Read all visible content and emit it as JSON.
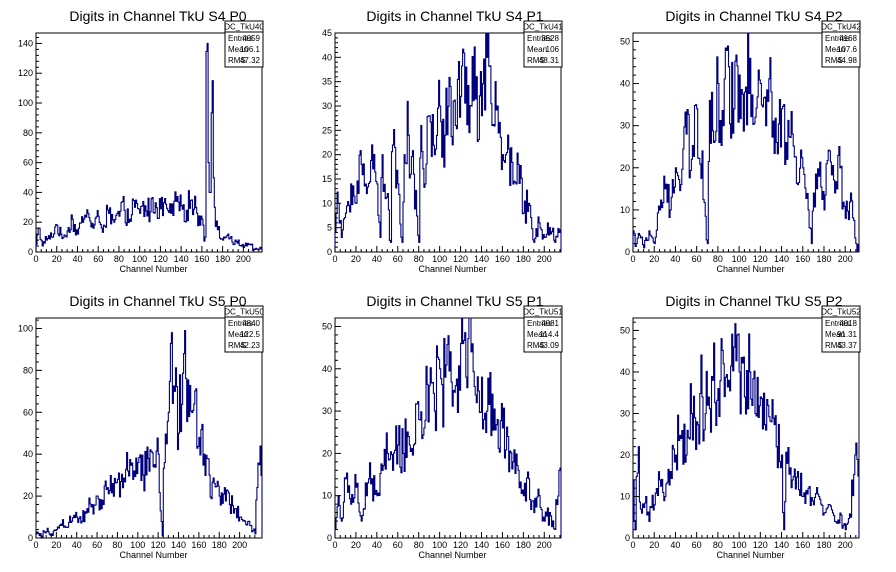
{
  "chart_data": [
    {
      "type": "histogram",
      "title": "Digits in Channel TkU S4 P0",
      "xlabel": "Channel Number",
      "ylabel": "",
      "xlim": [
        0,
        218
      ],
      "ylim": [
        0,
        147
      ],
      "xticks": [
        0,
        20,
        40,
        60,
        80,
        100,
        120,
        140,
        160,
        180,
        200
      ],
      "yticks": [
        0,
        20,
        40,
        60,
        80,
        100,
        120,
        140
      ],
      "color": "#00007f",
      "stats": {
        "name": "DC_TkU40",
        "entries_label": "Entries",
        "entries": "4059",
        "mean_label": "Mean",
        "mean": "106.1",
        "rms_label": "RMS",
        "rms": "47.32"
      },
      "keypoints": [
        [
          0,
          5
        ],
        [
          3,
          16
        ],
        [
          6,
          4
        ],
        [
          10,
          8
        ],
        [
          15,
          10
        ],
        [
          20,
          18
        ],
        [
          25,
          9
        ],
        [
          30,
          14
        ],
        [
          35,
          22
        ],
        [
          40,
          12
        ],
        [
          45,
          20
        ],
        [
          50,
          26
        ],
        [
          55,
          16
        ],
        [
          60,
          24
        ],
        [
          65,
          18
        ],
        [
          70,
          26
        ],
        [
          75,
          20
        ],
        [
          80,
          24
        ],
        [
          85,
          28
        ],
        [
          90,
          22
        ],
        [
          95,
          30
        ],
        [
          100,
          26
        ],
        [
          105,
          31
        ],
        [
          110,
          27
        ],
        [
          115,
          33
        ],
        [
          120,
          29
        ],
        [
          125,
          32
        ],
        [
          130,
          26
        ],
        [
          135,
          34
        ],
        [
          140,
          31
        ],
        [
          145,
          28
        ],
        [
          150,
          35
        ],
        [
          155,
          26
        ],
        [
          160,
          22
        ],
        [
          163,
          10
        ],
        [
          165,
          140
        ],
        [
          166,
          60
        ],
        [
          168,
          40
        ],
        [
          170,
          115
        ],
        [
          172,
          30
        ],
        [
          175,
          15
        ],
        [
          180,
          8
        ],
        [
          185,
          12
        ],
        [
          190,
          5
        ],
        [
          195,
          8
        ],
        [
          200,
          3
        ],
        [
          205,
          5
        ],
        [
          210,
          2
        ],
        [
          215,
          2
        ]
      ]
    },
    {
      "type": "histogram",
      "title": "Digits in Channel TkU S4 P1",
      "xlabel": "Channel Number",
      "ylabel": "",
      "xlim": [
        0,
        216
      ],
      "ylim": [
        0,
        45
      ],
      "xticks": [
        0,
        20,
        40,
        60,
        80,
        100,
        120,
        140,
        160,
        180,
        200
      ],
      "yticks": [
        0,
        5,
        10,
        15,
        20,
        25,
        30,
        35,
        40,
        45
      ],
      "color": "#00007f",
      "stats": {
        "name": "DC_TkU41",
        "entries_label": "Entries",
        "entries": "3528",
        "mean_label": "Mean",
        "mean": "106",
        "rms_label": "RMS",
        "rms": "48.31"
      },
      "keypoints": [
        [
          0,
          4
        ],
        [
          3,
          10
        ],
        [
          6,
          3
        ],
        [
          10,
          8
        ],
        [
          15,
          14
        ],
        [
          20,
          10
        ],
        [
          25,
          18
        ],
        [
          30,
          12
        ],
        [
          35,
          22
        ],
        [
          40,
          14
        ],
        [
          43,
          3
        ],
        [
          45,
          20
        ],
        [
          50,
          12
        ],
        [
          53,
          2
        ],
        [
          55,
          22
        ],
        [
          60,
          14
        ],
        [
          64,
          2
        ],
        [
          66,
          20
        ],
        [
          70,
          24
        ],
        [
          75,
          16
        ],
        [
          80,
          2
        ],
        [
          82,
          26
        ],
        [
          86,
          14
        ],
        [
          90,
          28
        ],
        [
          95,
          20
        ],
        [
          100,
          30
        ],
        [
          105,
          24
        ],
        [
          110,
          34
        ],
        [
          115,
          26
        ],
        [
          120,
          32
        ],
        [
          125,
          38
        ],
        [
          130,
          30
        ],
        [
          135,
          36
        ],
        [
          140,
          28
        ],
        [
          145,
          40
        ],
        [
          150,
          26
        ],
        [
          155,
          30
        ],
        [
          160,
          20
        ],
        [
          165,
          24
        ],
        [
          170,
          14
        ],
        [
          175,
          18
        ],
        [
          180,
          8
        ],
        [
          185,
          10
        ],
        [
          190,
          2
        ],
        [
          195,
          6
        ],
        [
          200,
          3
        ],
        [
          205,
          5
        ],
        [
          210,
          2
        ],
        [
          214,
          4
        ]
      ]
    },
    {
      "type": "histogram",
      "title": "Digits in Channel TkU S4 P2",
      "xlabel": "Channel Number",
      "ylabel": "",
      "xlim": [
        0,
        213
      ],
      "ylim": [
        0,
        52
      ],
      "xticks": [
        0,
        20,
        40,
        60,
        80,
        100,
        120,
        140,
        160,
        180,
        200
      ],
      "yticks": [
        0,
        10,
        20,
        30,
        40,
        50
      ],
      "color": "#00007f",
      "stats": {
        "name": "DC_TkU42",
        "entries_label": "Entries",
        "entries": "4168",
        "mean_label": "Mean",
        "mean": "107.6",
        "rms_label": "RMS",
        "rms": "44.98"
      },
      "keypoints": [
        [
          0,
          5
        ],
        [
          3,
          2
        ],
        [
          6,
          4
        ],
        [
          10,
          1
        ],
        [
          15,
          5
        ],
        [
          20,
          2
        ],
        [
          25,
          10
        ],
        [
          30,
          15
        ],
        [
          35,
          10
        ],
        [
          40,
          20
        ],
        [
          45,
          16
        ],
        [
          50,
          28
        ],
        [
          55,
          22
        ],
        [
          60,
          34
        ],
        [
          65,
          24
        ],
        [
          70,
          2
        ],
        [
          72,
          36
        ],
        [
          76,
          26
        ],
        [
          80,
          40
        ],
        [
          85,
          30
        ],
        [
          90,
          44
        ],
        [
          95,
          34
        ],
        [
          100,
          42
        ],
        [
          105,
          38
        ],
        [
          110,
          46
        ],
        [
          115,
          32
        ],
        [
          120,
          40
        ],
        [
          125,
          30
        ],
        [
          130,
          38
        ],
        [
          135,
          26
        ],
        [
          140,
          34
        ],
        [
          145,
          22
        ],
        [
          150,
          28
        ],
        [
          155,
          16
        ],
        [
          160,
          20
        ],
        [
          165,
          10
        ],
        [
          168,
          2
        ],
        [
          170,
          14
        ],
        [
          175,
          18
        ],
        [
          180,
          10
        ],
        [
          185,
          24
        ],
        [
          190,
          14
        ],
        [
          195,
          20
        ],
        [
          200,
          8
        ],
        [
          205,
          14
        ],
        [
          210,
          2
        ]
      ]
    },
    {
      "type": "histogram",
      "title": "Digits in Channel TkU S5 P0",
      "xlabel": "Channel Number",
      "ylabel": "",
      "xlim": [
        0,
        222
      ],
      "ylim": [
        0,
        105
      ],
      "xticks": [
        0,
        20,
        40,
        60,
        80,
        100,
        120,
        140,
        160,
        180,
        200
      ],
      "yticks": [
        0,
        20,
        40,
        60,
        80,
        100
      ],
      "color": "#00007f",
      "stats": {
        "name": "DC_TkU50",
        "entries_label": "Entries",
        "entries": "4840",
        "mean_label": "Mean",
        "mean": "122.5",
        "rms_label": "RMS",
        "rms": "42.23"
      },
      "keypoints": [
        [
          0,
          2
        ],
        [
          5,
          1
        ],
        [
          10,
          3
        ],
        [
          15,
          2
        ],
        [
          20,
          4
        ],
        [
          25,
          6
        ],
        [
          30,
          5
        ],
        [
          35,
          8
        ],
        [
          40,
          10
        ],
        [
          45,
          8
        ],
        [
          50,
          14
        ],
        [
          55,
          16
        ],
        [
          60,
          20
        ],
        [
          65,
          18
        ],
        [
          70,
          24
        ],
        [
          75,
          26
        ],
        [
          80,
          28
        ],
        [
          85,
          24
        ],
        [
          90,
          32
        ],
        [
          95,
          28
        ],
        [
          100,
          36
        ],
        [
          105,
          30
        ],
        [
          110,
          38
        ],
        [
          115,
          34
        ],
        [
          120,
          40
        ],
        [
          124,
          1
        ],
        [
          126,
          36
        ],
        [
          130,
          60
        ],
        [
          133,
          98
        ],
        [
          136,
          70
        ],
        [
          140,
          50
        ],
        [
          145,
          88
        ],
        [
          150,
          58
        ],
        [
          155,
          64
        ],
        [
          160,
          48
        ],
        [
          165,
          40
        ],
        [
          170,
          30
        ],
        [
          175,
          26
        ],
        [
          180,
          20
        ],
        [
          185,
          24
        ],
        [
          190,
          16
        ],
        [
          195,
          14
        ],
        [
          200,
          10
        ],
        [
          205,
          8
        ],
        [
          210,
          6
        ],
        [
          215,
          2
        ],
        [
          219,
          35
        ]
      ]
    },
    {
      "type": "histogram",
      "title": "Digits in Channel TkU S5 P1",
      "xlabel": "Channel Number",
      "ylabel": "",
      "xlim": [
        0,
        216
      ],
      "ylim": [
        0,
        52
      ],
      "xticks": [
        0,
        20,
        40,
        60,
        80,
        100,
        120,
        140,
        160,
        180,
        200
      ],
      "yticks": [
        0,
        10,
        20,
        30,
        40,
        50
      ],
      "color": "#00007f",
      "stats": {
        "name": "DC_TkU51",
        "entries_label": "Entries",
        "entries": "4081",
        "mean_label": "Mean",
        "mean": "114.4",
        "rms_label": "RMS",
        "rms": "43.09"
      },
      "keypoints": [
        [
          0,
          2
        ],
        [
          3,
          10
        ],
        [
          6,
          4
        ],
        [
          10,
          14
        ],
        [
          15,
          8
        ],
        [
          20,
          12
        ],
        [
          25,
          4
        ],
        [
          30,
          10
        ],
        [
          35,
          14
        ],
        [
          40,
          10
        ],
        [
          45,
          16
        ],
        [
          50,
          20
        ],
        [
          55,
          16
        ],
        [
          60,
          22
        ],
        [
          65,
          20
        ],
        [
          70,
          24
        ],
        [
          75,
          22
        ],
        [
          80,
          28
        ],
        [
          85,
          26
        ],
        [
          90,
          36
        ],
        [
          95,
          30
        ],
        [
          100,
          40
        ],
        [
          105,
          38
        ],
        [
          110,
          44
        ],
        [
          115,
          36
        ],
        [
          120,
          46
        ],
        [
          125,
          38
        ],
        [
          130,
          44
        ],
        [
          135,
          32
        ],
        [
          140,
          38
        ],
        [
          145,
          30
        ],
        [
          150,
          34
        ],
        [
          155,
          28
        ],
        [
          160,
          26
        ],
        [
          165,
          24
        ],
        [
          170,
          18
        ],
        [
          175,
          16
        ],
        [
          180,
          10
        ],
        [
          185,
          14
        ],
        [
          190,
          6
        ],
        [
          195,
          10
        ],
        [
          200,
          4
        ],
        [
          205,
          6
        ],
        [
          210,
          2
        ],
        [
          214,
          16
        ]
      ]
    },
    {
      "type": "histogram",
      "title": "Digits in Channel TkU S5 P2",
      "xlabel": "Channel Number",
      "ylabel": "",
      "xlim": [
        0,
        213
      ],
      "ylim": [
        0,
        53
      ],
      "xticks": [
        0,
        20,
        40,
        60,
        80,
        100,
        120,
        140,
        160,
        180,
        200
      ],
      "yticks": [
        0,
        10,
        20,
        30,
        40,
        50
      ],
      "color": "#00007f",
      "stats": {
        "name": "DC_TkU52",
        "entries_label": "Entries",
        "entries": "4018",
        "mean_label": "Mean",
        "mean": "91.31",
        "rms_label": "RMS",
        "rms": "43.37"
      },
      "keypoints": [
        [
          0,
          14
        ],
        [
          2,
          2
        ],
        [
          5,
          22
        ],
        [
          8,
          6
        ],
        [
          12,
          10
        ],
        [
          15,
          4
        ],
        [
          20,
          8
        ],
        [
          25,
          14
        ],
        [
          30,
          10
        ],
        [
          35,
          16
        ],
        [
          40,
          20
        ],
        [
          45,
          24
        ],
        [
          50,
          20
        ],
        [
          55,
          30
        ],
        [
          60,
          28
        ],
        [
          65,
          34
        ],
        [
          70,
          32
        ],
        [
          75,
          38
        ],
        [
          80,
          36
        ],
        [
          85,
          42
        ],
        [
          90,
          38
        ],
        [
          95,
          46
        ],
        [
          100,
          40
        ],
        [
          105,
          34
        ],
        [
          110,
          40
        ],
        [
          115,
          30
        ],
        [
          120,
          34
        ],
        [
          125,
          26
        ],
        [
          130,
          28
        ],
        [
          135,
          22
        ],
        [
          140,
          20
        ],
        [
          142,
          2
        ],
        [
          145,
          18
        ],
        [
          150,
          14
        ],
        [
          155,
          16
        ],
        [
          160,
          10
        ],
        [
          165,
          12
        ],
        [
          170,
          8
        ],
        [
          175,
          10
        ],
        [
          180,
          6
        ],
        [
          185,
          8
        ],
        [
          190,
          4
        ],
        [
          195,
          6
        ],
        [
          200,
          2
        ],
        [
          205,
          5
        ],
        [
          209,
          20
        ]
      ]
    }
  ]
}
